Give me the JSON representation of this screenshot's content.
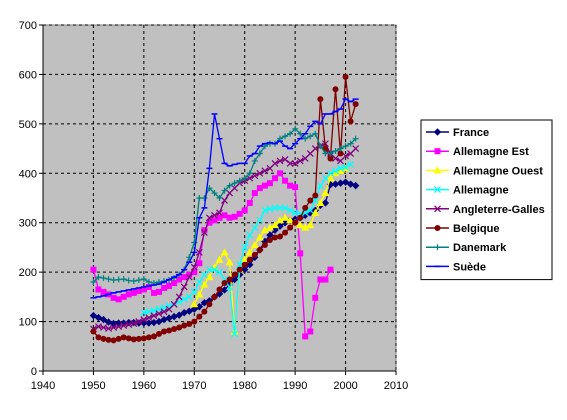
{
  "chart_data": {
    "type": "line",
    "title": "",
    "xlabel": "",
    "ylabel": "",
    "xlim": [
      1940,
      2010
    ],
    "ylim": [
      0,
      700
    ],
    "xticks": [
      1940,
      1950,
      1960,
      1970,
      1980,
      1990,
      2000,
      2010
    ],
    "yticks": [
      0,
      100,
      200,
      300,
      400,
      500,
      600,
      700
    ],
    "grid": true,
    "legend_position": "right",
    "plot_background": "#c0c0c0",
    "series": [
      {
        "name": "France",
        "color": "#000080",
        "marker": "diamond",
        "dash": "solid",
        "x": [
          1950,
          1951,
          1952,
          1953,
          1954,
          1955,
          1956,
          1957,
          1958,
          1959,
          1960,
          1961,
          1962,
          1963,
          1964,
          1965,
          1966,
          1967,
          1968,
          1969,
          1970,
          1971,
          1972,
          1973,
          1974,
          1975,
          1976,
          1977,
          1978,
          1979,
          1980,
          1981,
          1982,
          1983,
          1984,
          1985,
          1986,
          1987,
          1988,
          1989,
          1990,
          1991,
          1992,
          1993,
          1994,
          1995,
          1996,
          1997,
          1998,
          1999,
          2000,
          2001,
          2002
        ],
        "y": [
          112,
          108,
          104,
          99,
          96,
          97,
          97,
          98,
          98,
          97,
          97,
          97,
          98,
          100,
          104,
          107,
          110,
          113,
          118,
          121,
          125,
          130,
          138,
          142,
          150,
          156,
          164,
          175,
          185,
          195,
          205,
          215,
          230,
          245,
          262,
          275,
          285,
          293,
          300,
          305,
          307,
          310,
          315,
          320,
          325,
          335,
          340,
          377,
          378,
          380,
          382,
          378,
          375
        ]
      },
      {
        "name": "Allemagne Est",
        "color": "#ff00ff",
        "marker": "square",
        "dash": "solid",
        "x": [
          1950,
          1951,
          1952,
          1953,
          1954,
          1955,
          1956,
          1957,
          1958,
          1959,
          1960,
          1961,
          1962,
          1963,
          1964,
          1965,
          1966,
          1967,
          1968,
          1969,
          1970,
          1971,
          1972,
          1973,
          1974,
          1975,
          1976,
          1977,
          1978,
          1979,
          1980,
          1981,
          1982,
          1983,
          1984,
          1985,
          1986,
          1987,
          1988,
          1989,
          1990,
          1991,
          1992,
          1993,
          1994,
          1995,
          1996,
          1997
        ],
        "y": [
          205,
          165,
          160,
          155,
          148,
          145,
          150,
          155,
          158,
          162,
          165,
          170,
          158,
          160,
          168,
          172,
          178,
          185,
          190,
          195,
          200,
          218,
          285,
          300,
          305,
          310,
          315,
          310,
          312,
          318,
          325,
          340,
          360,
          370,
          375,
          380,
          390,
          400,
          385,
          375,
          372,
          238,
          70,
          80,
          148,
          185,
          185,
          205
        ]
      },
      {
        "name": "Allemagne Ouest",
        "color": "#ffff00",
        "marker": "triangle",
        "dash": "solid",
        "x": [
          1970,
          1971,
          1972,
          1973,
          1974,
          1975,
          1976,
          1977,
          1978,
          1979,
          1980,
          1981,
          1982,
          1983,
          1984,
          1985,
          1986,
          1987,
          1988,
          1989,
          1990,
          1991,
          1992,
          1993,
          1994,
          1995,
          1996,
          1997,
          1998,
          1999,
          2000
        ],
        "y": [
          135,
          155,
          175,
          190,
          210,
          225,
          240,
          220,
          80,
          205,
          225,
          240,
          255,
          270,
          285,
          290,
          295,
          305,
          310,
          305,
          300,
          295,
          290,
          295,
          320,
          340,
          360,
          390,
          400,
          405,
          410
        ]
      },
      {
        "name": "Allemagne",
        "color": "#00ffff",
        "marker": "x",
        "dash": "solid",
        "x": [
          1960,
          1961,
          1962,
          1963,
          1964,
          1965,
          1966,
          1967,
          1968,
          1969,
          1970,
          1971,
          1972,
          1973,
          1974,
          1975,
          1976,
          1977,
          1978,
          1979,
          1980,
          1981,
          1982,
          1983,
          1984,
          1985,
          1986,
          1987,
          1988,
          1989,
          1990,
          1991,
          1992,
          1993,
          1994,
          1995,
          1996,
          1997,
          1998,
          1999,
          2000,
          2001
        ],
        "y": [
          118,
          120,
          122,
          125,
          128,
          132,
          135,
          140,
          145,
          150,
          160,
          180,
          195,
          205,
          205,
          200,
          185,
          170,
          75,
          215,
          250,
          275,
          290,
          305,
          325,
          328,
          330,
          330,
          330,
          325,
          320,
          318,
          320,
          325,
          345,
          375,
          390,
          400,
          405,
          410,
          412,
          418
        ]
      },
      {
        "name": "Angleterre-Galles",
        "color": "#800080",
        "marker": "x",
        "dash": "solid",
        "x": [
          1950,
          1951,
          1952,
          1953,
          1954,
          1955,
          1956,
          1957,
          1958,
          1959,
          1960,
          1961,
          1962,
          1963,
          1964,
          1965,
          1966,
          1967,
          1968,
          1969,
          1970,
          1971,
          1972,
          1973,
          1974,
          1975,
          1976,
          1977,
          1978,
          1979,
          1980,
          1981,
          1982,
          1983,
          1984,
          1985,
          1986,
          1987,
          1988,
          1989,
          1990,
          1991,
          1992,
          1993,
          1994,
          1995,
          1996,
          1997,
          1998,
          1999,
          2000,
          2001,
          2002
        ],
        "y": [
          85,
          90,
          88,
          86,
          88,
          90,
          92,
          94,
          96,
          100,
          104,
          108,
          112,
          116,
          120,
          125,
          135,
          150,
          170,
          190,
          210,
          240,
          280,
          310,
          315,
          320,
          345,
          360,
          370,
          380,
          385,
          390,
          395,
          400,
          405,
          410,
          420,
          425,
          428,
          420,
          420,
          425,
          430,
          440,
          450,
          455,
          460,
          440,
          430,
          425,
          435,
          440,
          450
        ]
      },
      {
        "name": "Belgique",
        "color": "#800000",
        "marker": "circle",
        "dash": "solid",
        "x": [
          1950,
          1951,
          1952,
          1953,
          1954,
          1955,
          1956,
          1957,
          1958,
          1959,
          1960,
          1961,
          1962,
          1963,
          1964,
          1965,
          1966,
          1967,
          1968,
          1969,
          1970,
          1971,
          1972,
          1973,
          1974,
          1975,
          1976,
          1977,
          1978,
          1979,
          1980,
          1981,
          1982,
          1983,
          1984,
          1985,
          1986,
          1987,
          1988,
          1989,
          1990,
          1991,
          1992,
          1993,
          1994,
          1995,
          1996,
          1997,
          1998,
          1999,
          2000,
          2001,
          2002
        ],
        "y": [
          80,
          68,
          65,
          63,
          62,
          65,
          68,
          66,
          64,
          65,
          66,
          68,
          70,
          75,
          80,
          82,
          85,
          88,
          92,
          95,
          100,
          110,
          120,
          135,
          150,
          165,
          178,
          185,
          195,
          205,
          215,
          225,
          235,
          245,
          255,
          265,
          270,
          272,
          280,
          290,
          300,
          310,
          330,
          345,
          355,
          550,
          450,
          430,
          570,
          440,
          595,
          505,
          540
        ]
      },
      {
        "name": "Danemark",
        "color": "#008080",
        "marker": "plus",
        "dash": "solid",
        "x": [
          1950,
          1951,
          1952,
          1953,
          1954,
          1955,
          1956,
          1957,
          1958,
          1959,
          1960,
          1961,
          1962,
          1963,
          1964,
          1965,
          1966,
          1967,
          1968,
          1969,
          1970,
          1971,
          1972,
          1973,
          1974,
          1975,
          1976,
          1977,
          1978,
          1979,
          1980,
          1981,
          1982,
          1983,
          1984,
          1985,
          1986,
          1987,
          1988,
          1989,
          1990,
          1991,
          1992,
          1993,
          1994,
          1995,
          1996,
          1997,
          1998,
          1999,
          2000,
          2001,
          2002
        ],
        "y": [
          180,
          190,
          188,
          186,
          184,
          185,
          186,
          183,
          182,
          184,
          186,
          180,
          178,
          180,
          182,
          184,
          188,
          195,
          205,
          230,
          260,
          350,
          350,
          370,
          360,
          350,
          365,
          375,
          380,
          385,
          390,
          400,
          425,
          440,
          455,
          460,
          460,
          470,
          475,
          480,
          490,
          480,
          470,
          475,
          480,
          455,
          440,
          440,
          445,
          450,
          455,
          460,
          470
        ]
      },
      {
        "name": "Suède",
        "color": "#0000ff",
        "marker": "dash",
        "dash": "solid",
        "x": [
          1950,
          1951,
          1952,
          1953,
          1954,
          1955,
          1956,
          1957,
          1958,
          1959,
          1960,
          1961,
          1962,
          1963,
          1964,
          1965,
          1966,
          1967,
          1968,
          1969,
          1970,
          1971,
          1972,
          1973,
          1974,
          1975,
          1976,
          1977,
          1978,
          1979,
          1980,
          1981,
          1982,
          1983,
          1984,
          1985,
          1986,
          1987,
          1988,
          1989,
          1990,
          1991,
          1992,
          1993,
          1994,
          1995,
          1996,
          1997,
          1998,
          1999,
          2000,
          2001,
          2002
        ],
        "y": [
          148,
          150,
          152,
          155,
          158,
          160,
          162,
          164,
          166,
          168,
          170,
          172,
          174,
          176,
          180,
          185,
          190,
          195,
          205,
          220,
          240,
          310,
          330,
          410,
          520,
          470,
          420,
          415,
          418,
          420,
          420,
          435,
          440,
          455,
          460,
          462,
          460,
          465,
          455,
          450,
          460,
          470,
          480,
          495,
          505,
          500,
          520,
          520,
          525,
          530,
          550,
          545,
          550
        ]
      }
    ]
  }
}
